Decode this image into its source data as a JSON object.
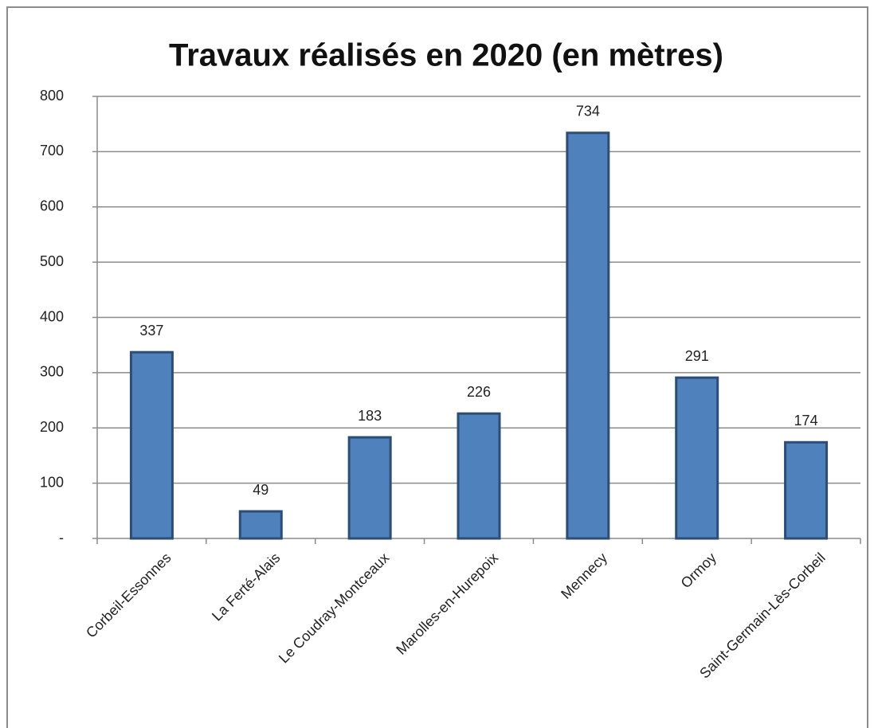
{
  "chart_data": {
    "type": "bar",
    "title": "Travaux réalisés en 2020 (en mètres)",
    "categories": [
      "Corbeil-Essonnes",
      "La Ferté-Alais",
      "Le Coudray-Montceaux",
      "Marolles-en-Hurepoix",
      "Mennecy",
      "Ormoy",
      "Saint-Germain-Lès-Corbeil"
    ],
    "values": [
      337,
      49,
      183,
      226,
      734,
      291,
      174
    ],
    "color": "#4f81bd",
    "ylim": [
      0,
      800
    ],
    "yticks": [
      {
        "value": 0,
        "label": "-"
      },
      100,
      200,
      300,
      400,
      500,
      600,
      700,
      800
    ],
    "grid": true
  }
}
